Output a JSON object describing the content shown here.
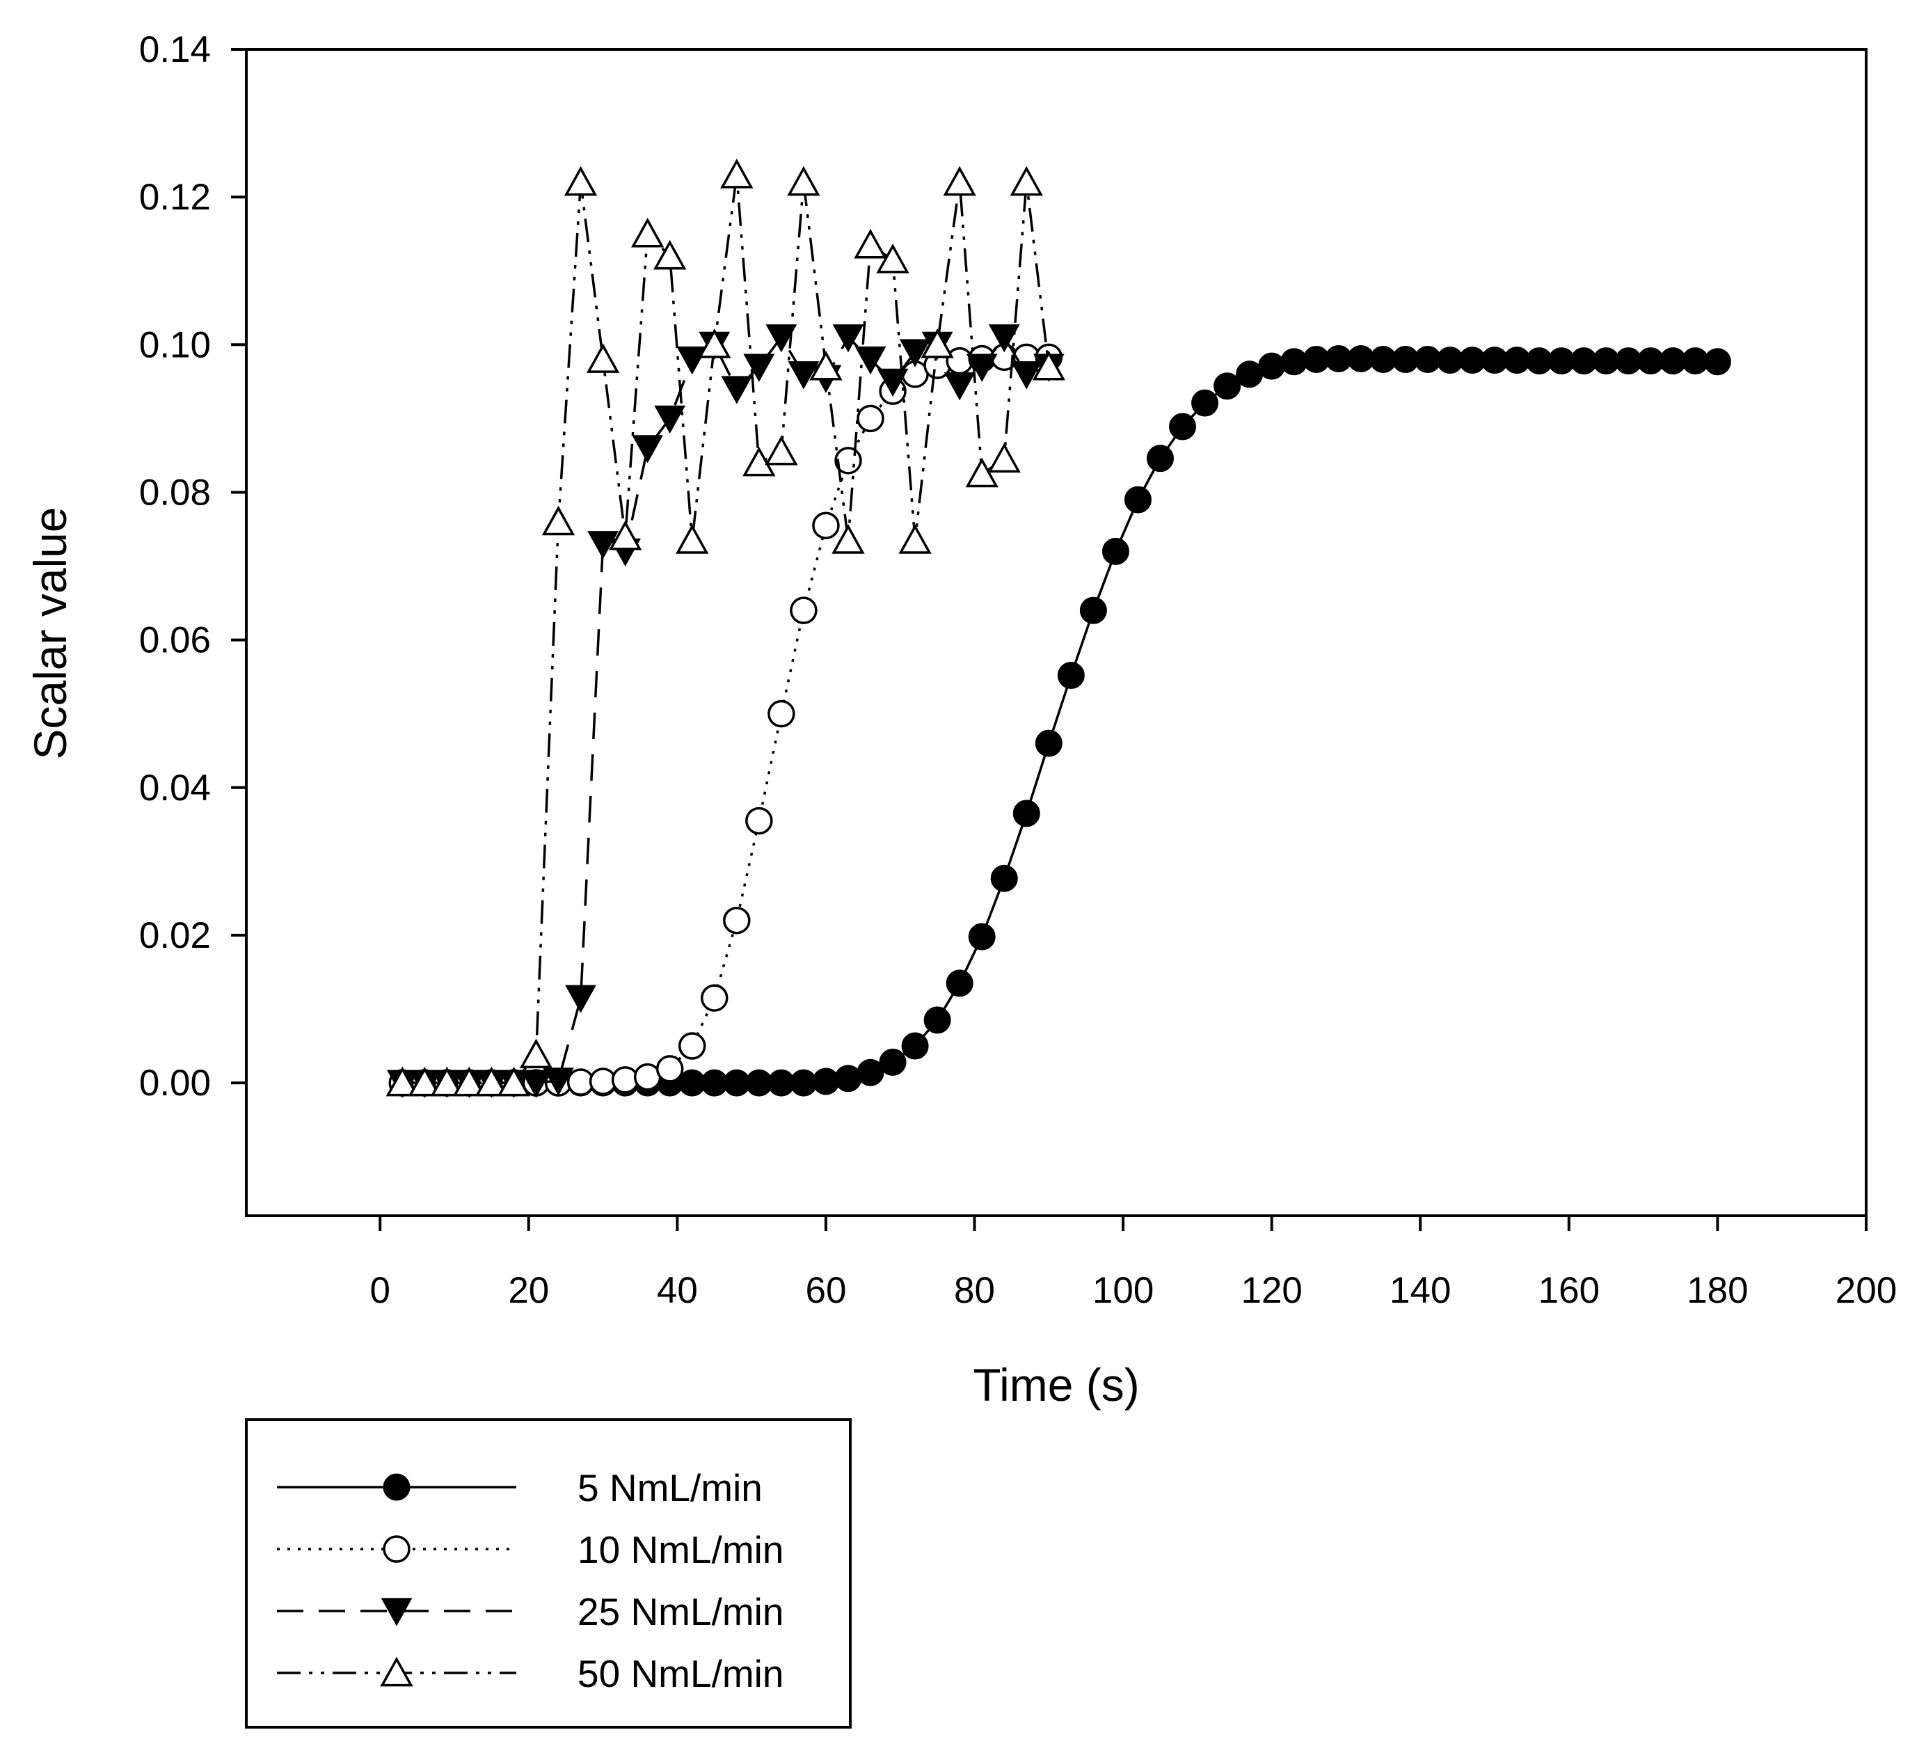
{
  "chart_data": {
    "type": "line",
    "xlabel": "Time (s)",
    "ylabel": "Scalar value",
    "xlim": [
      -18,
      200
    ],
    "ylim": [
      -0.018,
      0.14
    ],
    "x_ticks": [
      0,
      20,
      40,
      60,
      80,
      100,
      120,
      140,
      160,
      180,
      200
    ],
    "x_tick_labels": [
      "0",
      "20",
      "40",
      "60",
      "80",
      "100",
      "120",
      "140",
      "160",
      "180",
      "200"
    ],
    "y_ticks": [
      0.0,
      0.02,
      0.04,
      0.06,
      0.08,
      0.1,
      0.12,
      0.14
    ],
    "y_tick_labels": [
      "0.00",
      "0.02",
      "0.04",
      "0.06",
      "0.08",
      "0.10",
      "0.12",
      "0.14"
    ],
    "grid": false,
    "legend_position": "below-left",
    "series": [
      {
        "name": "5 NmL/min",
        "line_style": "solid",
        "marker": "filled-circle",
        "x": [
          3,
          6,
          9,
          12,
          15,
          18,
          21,
          24,
          27,
          30,
          33,
          36,
          39,
          42,
          45,
          48,
          51,
          54,
          57,
          60,
          63,
          66,
          69,
          72,
          75,
          78,
          81,
          84,
          87,
          90,
          93,
          96,
          99,
          102,
          105,
          108,
          111,
          114,
          117,
          120,
          123,
          126,
          129,
          132,
          135,
          138,
          141,
          144,
          147,
          150,
          153,
          156,
          159,
          162,
          165,
          168,
          171,
          174,
          177,
          180
        ],
        "y": [
          0,
          0,
          0,
          0,
          0,
          0,
          0,
          0,
          0,
          0,
          0,
          0,
          0,
          0,
          0,
          0,
          0,
          0,
          0,
          0.0002,
          0.0006,
          0.0014,
          0.0028,
          0.005,
          0.0085,
          0.0135,
          0.0198,
          0.0277,
          0.0365,
          0.046,
          0.0552,
          0.064,
          0.072,
          0.079,
          0.0846,
          0.0889,
          0.0921,
          0.0944,
          0.096,
          0.0971,
          0.0977,
          0.098,
          0.0981,
          0.0981,
          0.098,
          0.098,
          0.098,
          0.0979,
          0.0979,
          0.0979,
          0.0979,
          0.0978,
          0.0978,
          0.0978,
          0.0978,
          0.0978,
          0.0978,
          0.0978,
          0.0978,
          0.0977
        ]
      },
      {
        "name": "10 NmL/min",
        "line_style": "dotted",
        "marker": "open-circle",
        "x": [
          3,
          6,
          9,
          12,
          15,
          18,
          21,
          24,
          27,
          30,
          33,
          36,
          39,
          42,
          45,
          48,
          51,
          54,
          57,
          60,
          63,
          66,
          69,
          72,
          75,
          78,
          81,
          84,
          87,
          90
        ],
        "y": [
          0,
          0,
          0,
          0,
          0,
          0,
          0,
          0,
          0.0001,
          0.0002,
          0.0004,
          0.0008,
          0.0019,
          0.005,
          0.0115,
          0.022,
          0.0355,
          0.05,
          0.064,
          0.0755,
          0.0843,
          0.09,
          0.0937,
          0.096,
          0.0972,
          0.0978,
          0.0981,
          0.0983,
          0.0983,
          0.0983
        ]
      },
      {
        "name": "25 NmL/min",
        "line_style": "dashed",
        "marker": "filled-triangle-down",
        "x": [
          3,
          6,
          9,
          12,
          15,
          18,
          21,
          24,
          27,
          30,
          33,
          36,
          39,
          42,
          45,
          48,
          51,
          54,
          57,
          60,
          63,
          66,
          69,
          72,
          75,
          78,
          81,
          84,
          87,
          90
        ],
        "y": [
          0,
          0,
          0,
          0,
          0,
          0,
          0,
          0.0003,
          0.0115,
          0.073,
          0.072,
          0.086,
          0.09,
          0.098,
          0.1,
          0.094,
          0.097,
          0.101,
          0.096,
          0.0955,
          0.101,
          0.098,
          0.095,
          0.099,
          0.1,
          0.0945,
          0.097,
          0.101,
          0.096,
          0.097
        ]
      },
      {
        "name": "50 NmL/min",
        "line_style": "dash-dot-dot",
        "marker": "open-triangle-up",
        "x": [
          3,
          6,
          9,
          12,
          15,
          18,
          21,
          24,
          27,
          30,
          33,
          36,
          39,
          42,
          45,
          48,
          51,
          54,
          57,
          60,
          63,
          66,
          69,
          72,
          75,
          78,
          81,
          84,
          87,
          90
        ],
        "y": [
          0,
          0,
          0,
          0,
          0,
          0,
          0.0038,
          0.076,
          0.122,
          0.098,
          0.074,
          0.115,
          0.112,
          0.0735,
          0.1,
          0.123,
          0.084,
          0.0855,
          0.122,
          0.097,
          0.0735,
          0.1135,
          0.1115,
          0.0735,
          0.1,
          0.122,
          0.0825,
          0.0845,
          0.122,
          0.097
        ]
      }
    ]
  }
}
